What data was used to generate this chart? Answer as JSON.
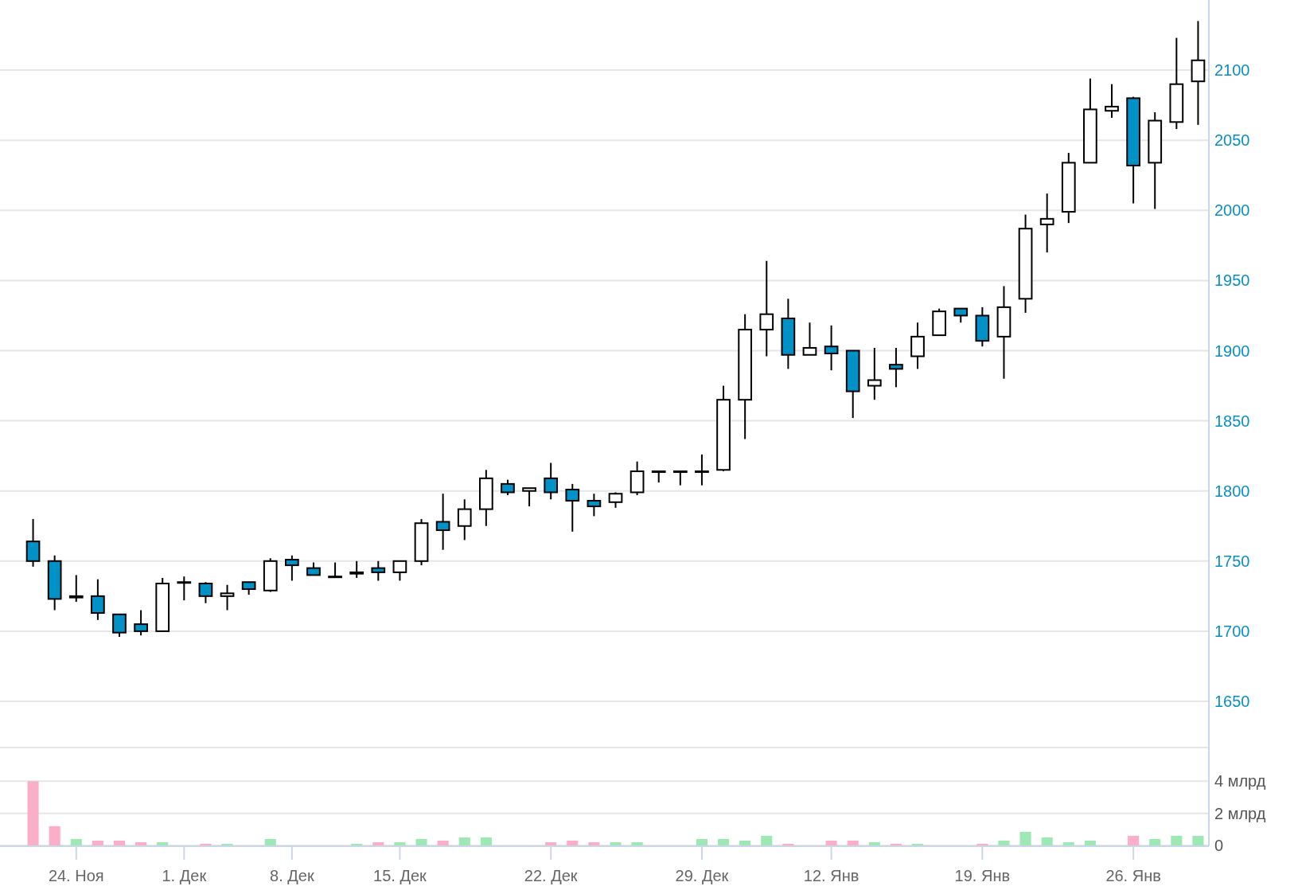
{
  "chart_data": [
    {
      "type": "candlestick",
      "categories": [
        null,
        null,
        null,
        null,
        null,
        null,
        null,
        null,
        null,
        null,
        null,
        null,
        null,
        null,
        null,
        null,
        null,
        null,
        null,
        null,
        null,
        null,
        null,
        null,
        null,
        null,
        null,
        null,
        null,
        null,
        null,
        null,
        null,
        null,
        null,
        null,
        null,
        null,
        null,
        null,
        null,
        null,
        null,
        null,
        null,
        null,
        null,
        null,
        null,
        null,
        null,
        null,
        null,
        null,
        null
      ],
      "ohlc": [
        [
          1764,
          1780,
          1746,
          1750
        ],
        [
          1750,
          1754,
          1715,
          1723
        ],
        [
          1724,
          1740,
          1721,
          1725
        ],
        [
          1725,
          1737,
          1708,
          1713
        ],
        [
          1712,
          1712,
          1696,
          1699
        ],
        [
          1705,
          1715,
          1697,
          1700
        ],
        [
          1700,
          1738,
          1700,
          1734
        ],
        [
          1735,
          1739,
          1722,
          1735
        ],
        [
          1734,
          1735,
          1720,
          1725
        ],
        [
          1725,
          1733,
          1715,
          1727
        ],
        [
          1735,
          1735,
          1726,
          1730
        ],
        [
          1729,
          1752,
          1728,
          1750
        ],
        [
          1751,
          1754,
          1736,
          1747
        ],
        [
          1745,
          1749,
          1740,
          1740
        ],
        [
          1739,
          1749,
          1739,
          1739
        ],
        [
          1741,
          1750,
          1738,
          1742
        ],
        [
          1745,
          1750,
          1736,
          1742
        ],
        [
          1742,
          1750,
          1736,
          1750
        ],
        [
          1750,
          1780,
          1747,
          1777
        ],
        [
          1778,
          1798,
          1758,
          1772
        ],
        [
          1775,
          1794,
          1765,
          1787
        ],
        [
          1787,
          1815,
          1775,
          1809
        ],
        [
          1805,
          1808,
          1797,
          1799
        ],
        [
          1800,
          1802,
          1789,
          1802
        ],
        [
          1809,
          1820,
          1794,
          1799
        ],
        [
          1801,
          1805,
          1771,
          1793
        ],
        [
          1793,
          1798,
          1782,
          1789
        ],
        [
          1792,
          1799,
          1788,
          1798
        ],
        [
          1799,
          1821,
          1797,
          1814
        ],
        [
          1814,
          1814,
          1806,
          1814
        ],
        [
          1814,
          1814,
          1804,
          1814
        ],
        [
          1814,
          1826,
          1804,
          1814
        ],
        [
          1815,
          1875,
          1814,
          1865
        ],
        [
          1865,
          1926,
          1837,
          1915
        ],
        [
          1915,
          1964,
          1896,
          1926
        ],
        [
          1923,
          1937,
          1887,
          1897
        ],
        [
          1897,
          1920,
          1897,
          1902
        ],
        [
          1903,
          1918,
          1886,
          1898
        ],
        [
          1900,
          1900,
          1852,
          1871
        ],
        [
          1875,
          1902,
          1865,
          1879
        ],
        [
          1890,
          1902,
          1874,
          1887
        ],
        [
          1896,
          1920,
          1887,
          1910
        ],
        [
          1911,
          1930,
          1911,
          1928
        ],
        [
          1930,
          1930,
          1920,
          1925
        ],
        [
          1925,
          1931,
          1903,
          1907
        ],
        [
          1910,
          1946,
          1880,
          1931
        ],
        [
          1937,
          1997,
          1927,
          1987
        ],
        [
          1990,
          2012,
          1970,
          1994
        ],
        [
          1999,
          2041,
          1991,
          2034
        ],
        [
          2034,
          2094,
          2034,
          2072
        ],
        [
          2071,
          2090,
          2066,
          2074
        ],
        [
          2080,
          2081,
          2005,
          2032
        ],
        [
          2034,
          2070,
          2001,
          2064
        ],
        [
          2063,
          2123,
          2058,
          2090
        ],
        [
          2092,
          2135,
          2061,
          2107
        ]
      ],
      "colors": [
        "#0091c6",
        "#0091c6",
        "#ffffff",
        "#0091c6",
        "#0091c6",
        "#0091c6",
        "#ffffff",
        "#ffffff",
        "#0091c6",
        "#ffffff",
        "#0091c6",
        "#ffffff",
        "#0091c6",
        "#0091c6",
        "#ffffff",
        "#ffffff",
        "#0091c6",
        "#ffffff",
        "#ffffff",
        "#0091c6",
        "#ffffff",
        "#ffffff",
        "#0091c6",
        "#ffffff",
        "#0091c6",
        "#0091c6",
        "#0091c6",
        "#ffffff",
        "#ffffff",
        "#ffffff",
        "#ffffff",
        "#ffffff",
        "#ffffff",
        "#ffffff",
        "#ffffff",
        "#0091c6",
        "#ffffff",
        "#0091c6",
        "#0091c6",
        "#ffffff",
        "#0091c6",
        "#ffffff",
        "#ffffff",
        "#0091c6",
        "#0091c6",
        "#ffffff",
        "#ffffff",
        "#ffffff",
        "#ffffff",
        "#ffffff",
        "#ffffff",
        "#0091c6",
        "#ffffff",
        "#ffffff",
        "#ffffff"
      ],
      "ylim": [
        1650,
        2150
      ],
      "yticks": [
        1650,
        1700,
        1750,
        1800,
        1850,
        1900,
        1950,
        2000,
        2050,
        2100
      ],
      "grid": "y",
      "tick_labels": "y"
    },
    {
      "type": "bar",
      "categories": [
        null,
        null,
        "24. Ноя",
        null,
        null,
        null,
        null,
        "1. Дек",
        null,
        null,
        null,
        null,
        "8. Дек",
        null,
        null,
        null,
        null,
        "15. Дек",
        null,
        null,
        null,
        null,
        null,
        null,
        "22. Дек",
        null,
        null,
        null,
        null,
        null,
        null,
        "29. Дек",
        null,
        null,
        null,
        null,
        null,
        "12. Янв",
        null,
        null,
        null,
        null,
        null,
        null,
        "19. Янв",
        null,
        null,
        null,
        null,
        null,
        null,
        "26. Янв",
        null,
        null,
        null
      ],
      "values": [
        4.0,
        1.2,
        0.4,
        0.3,
        0.3,
        0.2,
        0.2,
        null,
        0.1,
        0.1,
        null,
        0.4,
        null,
        null,
        null,
        0.1,
        0.2,
        0.2,
        0.4,
        0.3,
        0.5,
        0.5,
        null,
        null,
        0.2,
        0.3,
        0.2,
        0.2,
        0.2,
        null,
        null,
        0.4,
        0.4,
        0.3,
        0.6,
        0.1,
        null,
        0.3,
        0.3,
        0.2,
        0.1,
        0.1,
        null,
        null,
        0.1,
        0.3,
        0.85,
        0.5,
        0.2,
        0.3,
        null,
        0.6,
        0.4,
        0.6,
        0.6
      ],
      "colors": [
        "#fbaec8",
        "#fbaec8",
        "#9de8b4",
        "#fbaec8",
        "#fbaec8",
        "#fbaec8",
        "#9de8b4",
        null,
        "#fbaec8",
        "#9de8b4",
        null,
        "#9de8b4",
        null,
        null,
        null,
        "#9de8b4",
        "#fbaec8",
        "#9de8b4",
        "#9de8b4",
        "#fbaec8",
        "#9de8b4",
        "#9de8b4",
        null,
        null,
        "#fbaec8",
        "#fbaec8",
        "#fbaec8",
        "#9de8b4",
        "#9de8b4",
        null,
        null,
        "#9de8b4",
        "#9de8b4",
        "#9de8b4",
        "#9de8b4",
        "#fbaec8",
        null,
        "#fbaec8",
        "#fbaec8",
        "#9de8b4",
        "#fbaec8",
        "#9de8b4",
        null,
        null,
        "#fbaec8",
        "#9de8b4",
        "#9de8b4",
        "#9de8b4",
        "#9de8b4",
        "#9de8b4",
        null,
        "#fbaec8",
        "#9de8b4",
        "#9de8b4",
        "#9de8b4"
      ],
      "ylim": [
        0,
        6.1
      ],
      "yticks": [
        0,
        {
          "value": 2,
          "label": "2 млрд"
        },
        {
          "value": 4,
          "label": "4 млрд"
        }
      ],
      "grid": "y"
    }
  ]
}
